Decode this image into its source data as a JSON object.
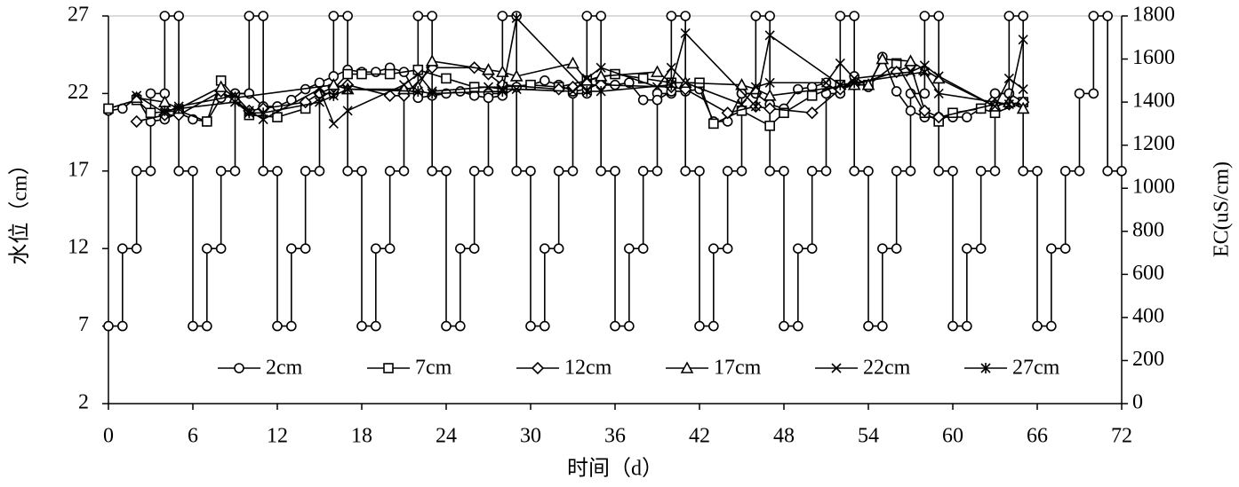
{
  "chart_data": {
    "type": "line",
    "xlabel": "时间（d）",
    "ylabel": "水位（cm）",
    "y2label": "EC(uS/cm)",
    "xlim": [
      0,
      72
    ],
    "xticks": [
      0,
      6,
      12,
      18,
      24,
      30,
      36,
      42,
      48,
      54,
      60,
      66,
      72
    ],
    "ylim": [
      2,
      27
    ],
    "yticks": [
      2,
      7,
      12,
      17,
      22,
      27
    ],
    "y2lim": [
      0,
      1800
    ],
    "y2ticks": [
      0,
      200,
      400,
      600,
      800,
      1000,
      1200,
      1400,
      1600,
      1800
    ],
    "legend": "bottom",
    "series": [
      {
        "color": "#000000",
        "marker": "circle",
        "axis": "y",
        "x": [
          0,
          1,
          1,
          2,
          2,
          3,
          3,
          4,
          4,
          5,
          5,
          6,
          6,
          7,
          7,
          8,
          8,
          9,
          9,
          10,
          10,
          11,
          11,
          12,
          12,
          13,
          13,
          14,
          14,
          15,
          15,
          16,
          16,
          17,
          17,
          18,
          18,
          19,
          19,
          20,
          20,
          21,
          21,
          22,
          22,
          23,
          23,
          24,
          24,
          25,
          25,
          26,
          26,
          27,
          27,
          28,
          28,
          29,
          29,
          30,
          30,
          31,
          31,
          32,
          32,
          33,
          33,
          34,
          34,
          35,
          35,
          36,
          36,
          37,
          37,
          38,
          38,
          39,
          39,
          40,
          40,
          41,
          41,
          42,
          42,
          43,
          43,
          44,
          44,
          45,
          45,
          46,
          46,
          47,
          47,
          48,
          48,
          49,
          49,
          50,
          50,
          51,
          51,
          52,
          52,
          53,
          53,
          54,
          54,
          55,
          55,
          56,
          56,
          57,
          57,
          58,
          58,
          59,
          59,
          60,
          60,
          61,
          61,
          62,
          62,
          63,
          63,
          64,
          64,
          65,
          65,
          66,
          66,
          67,
          67,
          68,
          68,
          69,
          69,
          70,
          70,
          71,
          71,
          72
        ],
        "values": [
          7,
          7,
          12,
          12,
          17,
          17,
          22,
          22,
          27,
          27,
          17,
          17,
          7,
          7,
          12,
          12,
          17,
          17,
          22,
          22,
          27,
          27,
          17,
          17,
          7,
          7,
          12,
          12,
          17,
          17,
          22,
          22,
          27,
          27,
          17,
          17,
          7,
          7,
          12,
          12,
          17,
          17,
          22,
          22,
          27,
          27,
          17,
          17,
          7,
          7,
          12,
          12,
          17,
          17,
          22,
          22,
          27,
          27,
          17,
          17,
          7,
          7,
          12,
          12,
          17,
          17,
          22,
          22,
          27,
          27,
          17,
          17,
          7,
          7,
          12,
          12,
          17,
          17,
          22,
          22,
          27,
          27,
          17,
          17,
          7,
          7,
          12,
          12,
          17,
          17,
          22,
          22,
          27,
          27,
          17,
          17,
          7,
          7,
          12,
          12,
          17,
          17,
          22,
          22,
          27,
          27,
          17,
          17,
          7,
          7,
          12,
          12,
          17,
          17,
          22,
          22,
          27,
          27,
          17,
          17,
          7,
          7,
          12,
          12,
          17,
          17,
          22,
          22,
          27,
          27,
          17,
          17,
          7,
          7,
          12,
          12,
          17,
          17,
          22,
          22,
          27,
          27,
          17,
          17
        ]
      },
      {
        "name": "2cm",
        "color": "#000000",
        "marker": "circle",
        "axis": "y2",
        "x": [
          0,
          1,
          2,
          3,
          4,
          5,
          6,
          7,
          8,
          9,
          10,
          11,
          12,
          13,
          14,
          15,
          16,
          17,
          18,
          19,
          20,
          21,
          22,
          23,
          24,
          25,
          26,
          27,
          28,
          29,
          30,
          31,
          32,
          33,
          34,
          35,
          36,
          37,
          38,
          39,
          40,
          41,
          42,
          43,
          44,
          45,
          46,
          47,
          48,
          49,
          50,
          51,
          52,
          53,
          54,
          55,
          56,
          57,
          58,
          59,
          60,
          61,
          62,
          63,
          64,
          65
        ],
        "values": [
          1360,
          1370,
          1420,
          1310,
          1320,
          1350,
          1320,
          1310,
          1420,
          1440,
          1440,
          1380,
          1380,
          1410,
          1460,
          1490,
          1520,
          1550,
          1540,
          1540,
          1560,
          1540,
          1420,
          1430,
          1440,
          1450,
          1430,
          1420,
          1430,
          1470,
          1480,
          1500,
          1480,
          1450,
          1460,
          1490,
          1480,
          1490,
          1410,
          1410,
          1450,
          1450,
          1460,
          1310,
          1310,
          1440,
          1440,
          1390,
          1370,
          1460,
          1470,
          1490,
          1440,
          1520,
          1470,
          1610,
          1450,
          1360,
          1330,
          1330,
          1330,
          1330,
          1370,
          1440,
          1440,
          1400
        ]
      },
      {
        "name": "7cm",
        "color": "#000000",
        "marker": "square",
        "axis": "y2",
        "x": [
          0,
          2,
          3,
          5,
          7,
          8,
          10,
          12,
          14,
          16,
          17,
          18,
          20,
          22,
          24,
          26,
          28,
          30,
          32,
          34,
          36,
          38,
          40,
          42,
          43,
          45,
          47,
          48,
          50,
          52,
          54,
          56,
          58,
          59,
          60,
          62,
          63,
          65
        ],
        "values": [
          1370,
          1410,
          1350,
          1360,
          1310,
          1500,
          1340,
          1330,
          1370,
          1460,
          1530,
          1530,
          1530,
          1550,
          1510,
          1470,
          1470,
          1480,
          1470,
          1500,
          1530,
          1510,
          1490,
          1490,
          1300,
          1360,
          1290,
          1350,
          1430,
          1480,
          1480,
          1580,
          1350,
          1310,
          1350,
          1370,
          1350,
          1400
        ]
      },
      {
        "name": "12cm",
        "color": "#000000",
        "marker": "diamond",
        "axis": "y2",
        "x": [
          2,
          4,
          5,
          8,
          10,
          11,
          14,
          15,
          16,
          17,
          20,
          21,
          23,
          26,
          27,
          28,
          32,
          33,
          34,
          35,
          40,
          41,
          44,
          46,
          47,
          50,
          52,
          53,
          56,
          57,
          58,
          59,
          63,
          64,
          65
        ],
        "values": [
          1310,
          1340,
          1340,
          1450,
          1360,
          1370,
          1400,
          1440,
          1470,
          1480,
          1430,
          1430,
          1560,
          1560,
          1530,
          1480,
          1460,
          1470,
          1480,
          1480,
          1470,
          1460,
          1350,
          1380,
          1370,
          1350,
          1460,
          1480,
          1540,
          1570,
          1360,
          1330,
          1390,
          1390,
          1400
        ]
      },
      {
        "name": "17cm",
        "color": "#000000",
        "marker": "triangle",
        "axis": "y2",
        "x": [
          2,
          4,
          5,
          8,
          9,
          16,
          17,
          21,
          22,
          23,
          27,
          28,
          29,
          33,
          34,
          35,
          39,
          40,
          41,
          45,
          46,
          47,
          53,
          54,
          55,
          57,
          58,
          59,
          63,
          64,
          65
        ],
        "values": [
          1420,
          1400,
          1370,
          1470,
          1420,
          1480,
          1460,
          1460,
          1470,
          1590,
          1550,
          1540,
          1520,
          1580,
          1500,
          1520,
          1540,
          1490,
          1490,
          1480,
          1460,
          1430,
          1480,
          1480,
          1600,
          1590,
          1550,
          1510,
          1380,
          1400,
          1370
        ]
      },
      {
        "name": "22cm",
        "color": "#000000",
        "marker": "cross",
        "axis": "y2",
        "x": [
          2,
          4,
          5,
          9,
          10,
          11,
          15,
          16,
          17,
          21,
          22,
          23,
          27,
          28,
          29,
          33,
          34,
          35,
          39,
          40,
          41,
          45,
          46,
          47,
          51,
          52,
          53,
          57,
          58,
          59,
          63,
          64,
          65
        ],
        "values": [
          1430,
          1350,
          1380,
          1430,
          1360,
          1320,
          1460,
          1300,
          1360,
          1480,
          1530,
          1450,
          1470,
          1460,
          1460,
          1450,
          1510,
          1560,
          1470,
          1560,
          1490,
          1390,
          1470,
          1490,
          1490,
          1580,
          1510,
          1540,
          1570,
          1520,
          1380,
          1510,
          1460
        ]
      },
      {
        "name": "27cm",
        "color": "#000000",
        "marker": "asterisk",
        "axis": "y2",
        "x": [
          4,
          5,
          9,
          10,
          11,
          15,
          16,
          17,
          22,
          23,
          28,
          29,
          34,
          35,
          40,
          41,
          46,
          47,
          52,
          53,
          58,
          59,
          64,
          65
        ],
        "values": [
          1360,
          1370,
          1400,
          1350,
          1350,
          1400,
          1430,
          1460,
          1450,
          1440,
          1450,
          1790,
          1450,
          1450,
          1480,
          1720,
          1380,
          1710,
          1480,
          1490,
          1540,
          1440,
          1390,
          1690
        ]
      }
    ]
  }
}
